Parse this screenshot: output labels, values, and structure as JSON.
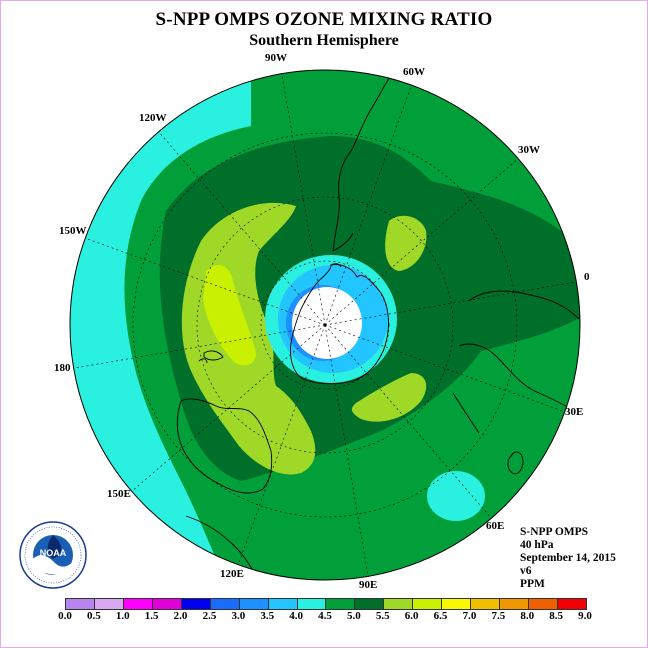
{
  "title": "S-NPP OMPS OZONE MIXING RATIO",
  "subtitle": "Southern Hemisphere",
  "longitude_labels": {
    "lon_90w": "90W",
    "lon_60w": "60W",
    "lon_30w": "30W",
    "lon_0": "0",
    "lon_30e": "30E",
    "lon_60e": "60E",
    "lon_90e": "90E",
    "lon_120e": "120E",
    "lon_150e": "150E",
    "lon_180": "180",
    "lon_150w": "150W",
    "lon_120w": "120W"
  },
  "info": {
    "instrument": "S-NPP OMPS",
    "level": "40 hPa",
    "date": "September 14, 2015",
    "version": "v6",
    "units": "PPM"
  },
  "logo_text": "NOAA",
  "colorbar": {
    "labels": [
      "0.0",
      "0.5",
      "1.0",
      "1.5",
      "2.0",
      "2.5",
      "3.0",
      "3.5",
      "4.0",
      "4.5",
      "5.0",
      "5.5",
      "6.0",
      "6.5",
      "7.0",
      "7.5",
      "8.0",
      "8.5",
      "9.0"
    ],
    "colors": [
      "#b785f0",
      "#d8a8f0",
      "#ff00ff",
      "#e000d8",
      "#0000ee",
      "#1a6cff",
      "#1e90ff",
      "#22c5ff",
      "#2af0e0",
      "#009f3a",
      "#006f2a",
      "#a0d828",
      "#c8f000",
      "#f8f800",
      "#f0c000",
      "#f09800",
      "#f06000",
      "#f00000",
      "#8b5a2b"
    ]
  }
}
